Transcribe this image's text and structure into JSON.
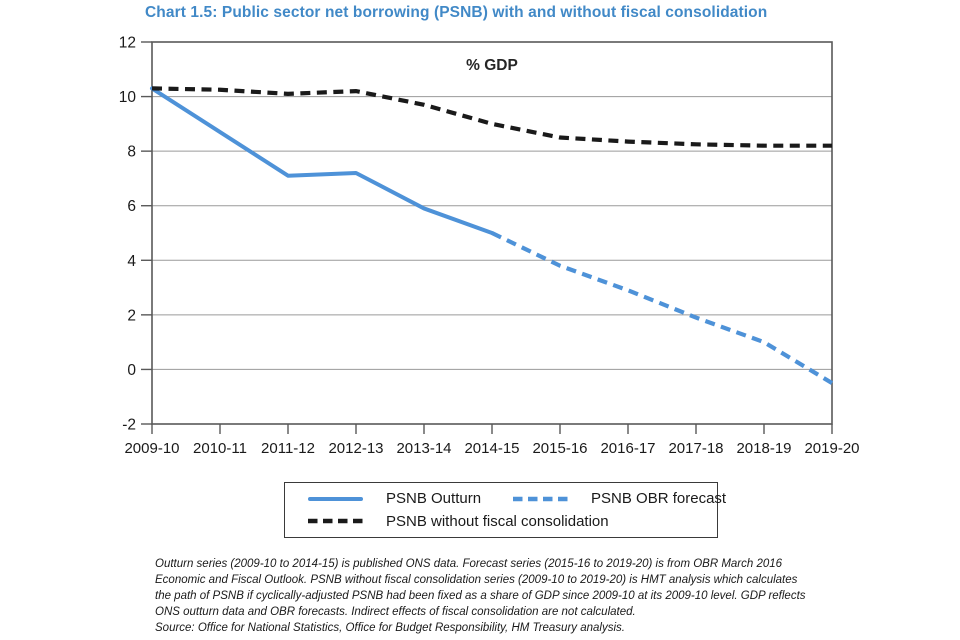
{
  "title": "Chart 1.5: Public sector net borrowing (PSNB) with and without fiscal consolidation",
  "colors": {
    "title_blue": "#4189c7",
    "series_blue": "#4e92d8",
    "series_black": "#1a1a1a",
    "gridline": "#9a9a9a",
    "axis_box": "#595959",
    "text": "#1a1a1a"
  },
  "chart_data": {
    "type": "line",
    "inner_label": "% GDP",
    "categories": [
      "2009-10",
      "2010-11",
      "2011-12",
      "2012-13",
      "2013-14",
      "2014-15",
      "2015-16",
      "2016-17",
      "2017-18",
      "2018-19",
      "2019-20"
    ],
    "yticks": [
      12,
      10,
      8,
      6,
      4,
      2,
      0,
      -2
    ],
    "ylim": [
      -2,
      12
    ],
    "grid": true,
    "legend_position": "bottom",
    "series": [
      {
        "name": "PSNB Outturn",
        "style": "solid",
        "color": "#4e92d8",
        "x_start_index": 0,
        "values": [
          10.3,
          8.7,
          7.1,
          7.2,
          5.9,
          5.0
        ]
      },
      {
        "name": "PSNB OBR forecast",
        "style": "dashed",
        "color": "#4e92d8",
        "x_start_index": 5,
        "values": [
          5.0,
          3.8,
          2.9,
          1.9,
          1.0,
          -0.5
        ]
      },
      {
        "name": "PSNB without fiscal consolidation",
        "style": "dashed",
        "color": "#1a1a1a",
        "x_start_index": 0,
        "values": [
          10.3,
          10.25,
          10.1,
          10.2,
          9.7,
          9.0,
          8.5,
          8.35,
          8.25,
          8.2,
          8.2
        ]
      }
    ]
  },
  "legend": {
    "items": [
      {
        "label": "PSNB Outturn",
        "line": "solid",
        "color": "#4e92d8"
      },
      {
        "label": "PSNB OBR forecast",
        "line": "dashed",
        "color": "#4e92d8"
      },
      {
        "label": "PSNB without fiscal consolidation",
        "line": "dashed",
        "color": "#1a1a1a"
      }
    ]
  },
  "footnotes": [
    "Outturn series (2009-10 to 2014-15) is published ONS data. Forecast series (2015-16 to 2019-20) is from OBR March 2016",
    "Economic and Fiscal Outlook. PSNB without fiscal consolidation series (2009-10 to 2019-20) is HMT analysis which calculates",
    "the path of PSNB if cyclically-adjusted PSNB had been fixed as a share of GDP since 2009-10 at its 2009-10 level. GDP reflects",
    "ONS outturn data and OBR forecasts. Indirect effects of fiscal consolidation are not calculated.",
    "Source: Office for National Statistics, Office for Budget Responsibility, HM Treasury analysis."
  ]
}
